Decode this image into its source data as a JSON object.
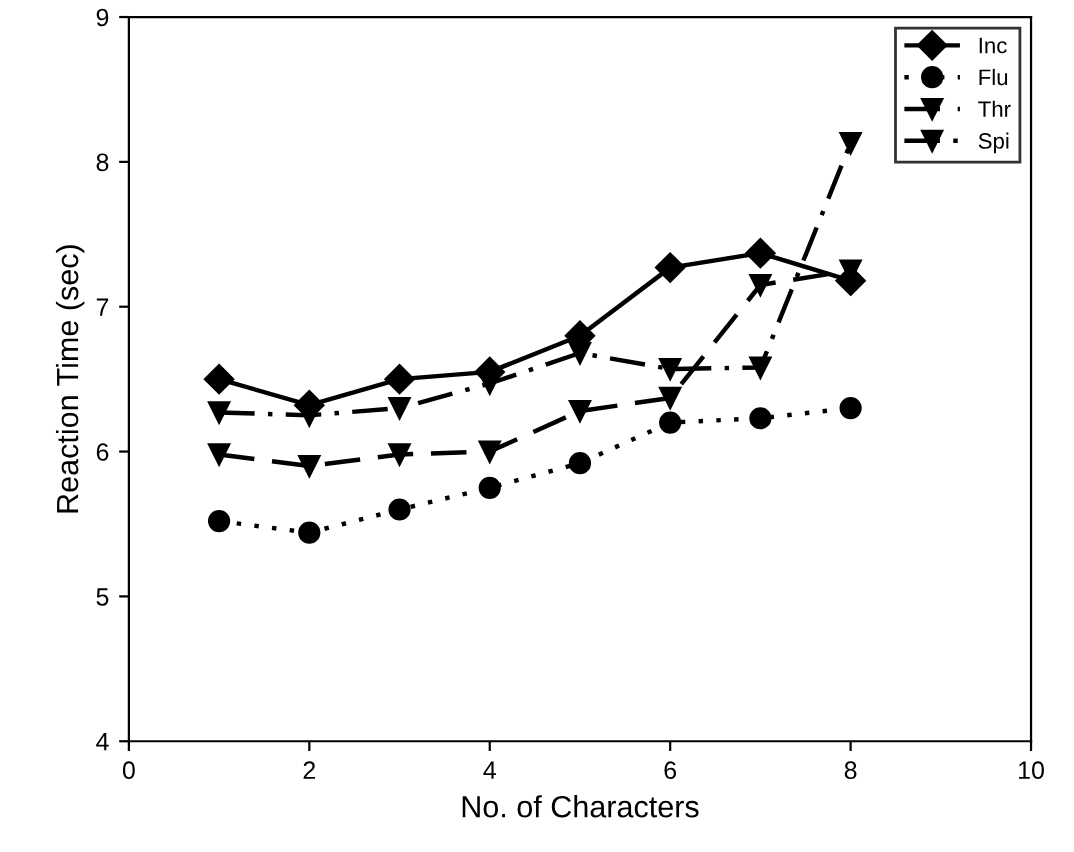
{
  "chart_data": {
    "type": "line",
    "xlabel": "No. of Characters",
    "ylabel": "Reaction Time (sec)",
    "x": [
      1,
      2,
      3,
      4,
      5,
      6,
      7,
      8
    ],
    "xlim": [
      0,
      10
    ],
    "xticks": [
      0,
      2,
      4,
      6,
      8,
      10
    ],
    "ylim": [
      4,
      9
    ],
    "yticks": [
      4,
      5,
      6,
      7,
      8,
      9
    ],
    "grid": false,
    "legend": "top right",
    "series": [
      {
        "name": "Inc",
        "color": "#000000",
        "marker": "diamond",
        "line_style": "solid",
        "values": [
          6.5,
          6.32,
          6.5,
          6.55,
          6.8,
          7.27,
          7.37,
          7.18
        ]
      },
      {
        "name": "Flu",
        "color": "#000000",
        "marker": "circle",
        "line_style": "dotted",
        "values": [
          5.52,
          5.44,
          5.6,
          5.75,
          5.92,
          6.2,
          6.23,
          6.3
        ]
      },
      {
        "name": "Thr",
        "color": "#000000",
        "marker": "triangle",
        "line_style": "dashed",
        "values": [
          5.98,
          5.9,
          5.98,
          6.0,
          6.28,
          6.37,
          7.15,
          7.25
        ]
      },
      {
        "name": "Spi",
        "color": "#000000",
        "marker": "triangle",
        "line_style": "dashdot",
        "values": [
          6.27,
          6.25,
          6.3,
          6.47,
          6.68,
          6.57,
          6.58,
          8.13
        ]
      }
    ]
  }
}
